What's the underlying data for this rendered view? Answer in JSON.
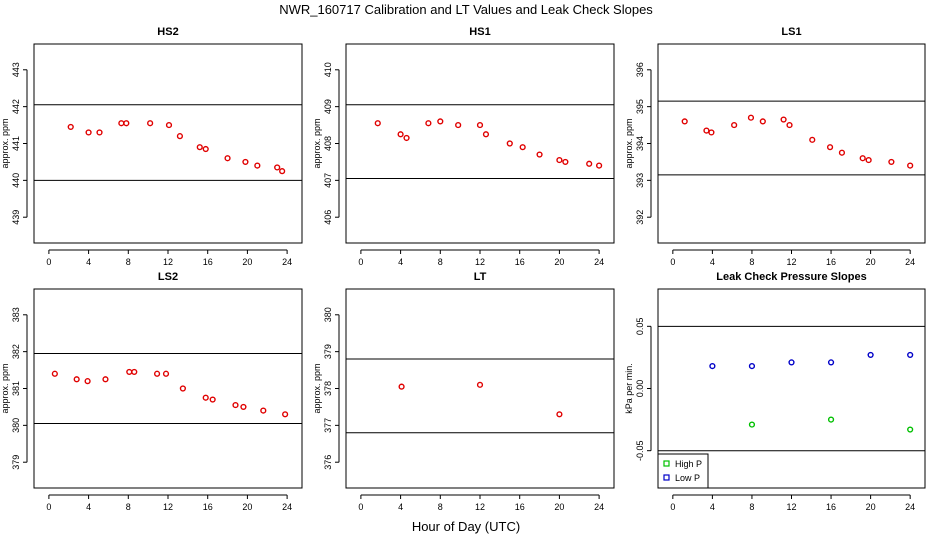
{
  "figure": {
    "title": "NWR_160717  Calibration and LT Values and Leak Check Slopes",
    "xlabel": "Hour of Day (UTC)"
  },
  "chart_data": [
    {
      "type": "scatter",
      "title": "HS2",
      "ylabel": "approx. ppm",
      "xlim": [
        -1.5,
        25.5
      ],
      "ylim": [
        438.3,
        443.7
      ],
      "xticks": [
        0,
        4,
        8,
        12,
        16,
        20,
        24
      ],
      "yticks": [
        439,
        440,
        441,
        442,
        443
      ],
      "hlines": [
        442.05,
        440.0
      ],
      "grid": false,
      "series": [
        {
          "color": "#e00000",
          "marker": "circle",
          "x": [
            2.2,
            4.0,
            5.1,
            7.3,
            7.8,
            10.2,
            12.1,
            13.2,
            15.2,
            15.8,
            18.0,
            19.8,
            21.0,
            23.0,
            23.5
          ],
          "y": [
            441.45,
            441.3,
            441.3,
            441.55,
            441.55,
            441.55,
            441.5,
            441.2,
            440.9,
            440.85,
            440.6,
            440.5,
            440.4,
            440.35,
            440.25
          ]
        }
      ]
    },
    {
      "type": "scatter",
      "title": "HS1",
      "ylabel": "approx. ppm",
      "xlim": [
        -1.5,
        25.5
      ],
      "ylim": [
        405.3,
        410.7
      ],
      "xticks": [
        0,
        4,
        8,
        12,
        16,
        20,
        24
      ],
      "yticks": [
        406,
        407,
        408,
        409,
        410
      ],
      "hlines": [
        409.05,
        407.05
      ],
      "grid": false,
      "series": [
        {
          "color": "#e00000",
          "marker": "circle",
          "x": [
            1.7,
            4.0,
            4.6,
            6.8,
            8.0,
            9.8,
            12.0,
            12.6,
            15.0,
            16.3,
            18.0,
            20.0,
            20.6,
            23.0,
            24.0
          ],
          "y": [
            408.55,
            408.25,
            408.15,
            408.55,
            408.6,
            408.5,
            408.5,
            408.25,
            408.0,
            407.9,
            407.7,
            407.55,
            407.5,
            407.45,
            407.4
          ]
        }
      ]
    },
    {
      "type": "scatter",
      "title": "LS1",
      "ylabel": "approx. ppm",
      "xlim": [
        -1.5,
        25.5
      ],
      "ylim": [
        391.3,
        396.7
      ],
      "xticks": [
        0,
        4,
        8,
        12,
        16,
        20,
        24
      ],
      "yticks": [
        392,
        393,
        394,
        395,
        396
      ],
      "hlines": [
        395.15,
        393.15
      ],
      "grid": false,
      "series": [
        {
          "color": "#e00000",
          "marker": "circle",
          "x": [
            1.2,
            3.4,
            3.9,
            6.2,
            7.9,
            9.1,
            11.2,
            11.8,
            14.1,
            15.9,
            17.1,
            19.2,
            19.8,
            22.1,
            24.0
          ],
          "y": [
            394.6,
            394.35,
            394.3,
            394.5,
            394.7,
            394.6,
            394.65,
            394.5,
            394.1,
            393.9,
            393.75,
            393.6,
            393.55,
            393.5,
            393.4
          ]
        }
      ]
    },
    {
      "type": "scatter",
      "title": "LS2",
      "ylabel": "approx. ppm",
      "xlim": [
        -1.5,
        25.5
      ],
      "ylim": [
        378.3,
        383.7
      ],
      "xticks": [
        0,
        4,
        8,
        12,
        16,
        20,
        24
      ],
      "yticks": [
        379,
        380,
        381,
        382,
        383
      ],
      "hlines": [
        381.95,
        380.05
      ],
      "grid": false,
      "series": [
        {
          "color": "#e00000",
          "marker": "circle",
          "x": [
            0.6,
            2.8,
            3.9,
            5.7,
            8.1,
            8.6,
            10.9,
            11.8,
            13.5,
            15.8,
            16.5,
            18.8,
            19.6,
            21.6,
            23.8
          ],
          "y": [
            381.4,
            381.25,
            381.2,
            381.25,
            381.45,
            381.45,
            381.4,
            381.4,
            381.0,
            380.75,
            380.7,
            380.55,
            380.5,
            380.4,
            380.3
          ]
        }
      ]
    },
    {
      "type": "scatter",
      "title": "LT",
      "ylabel": "approx. ppm",
      "xlim": [
        -1.5,
        25.5
      ],
      "ylim": [
        375.3,
        380.7
      ],
      "xticks": [
        0,
        4,
        8,
        12,
        16,
        20,
        24
      ],
      "yticks": [
        376,
        377,
        378,
        379,
        380
      ],
      "hlines": [
        378.8,
        376.8
      ],
      "grid": false,
      "series": [
        {
          "color": "#e00000",
          "marker": "circle",
          "x": [
            4.1,
            12.0,
            20.0
          ],
          "y": [
            378.05,
            378.1,
            377.3
          ]
        }
      ]
    },
    {
      "type": "scatter",
      "title": "Leak Check Pressure Slopes",
      "ylabel": "kPa per min.",
      "xlim": [
        -1.5,
        25.5
      ],
      "ylim": [
        -0.08,
        0.08
      ],
      "xticks": [
        0,
        4,
        8,
        12,
        16,
        20,
        24
      ],
      "yticks": [
        -0.05,
        0.0,
        0.05
      ],
      "ytick_labels": [
        "-0.05",
        "0.00",
        "0.05"
      ],
      "hlines": [
        0.05,
        -0.05
      ],
      "grid": false,
      "legend_position": "bottom-left",
      "series": [
        {
          "name": "High P",
          "color": "#00c000",
          "marker": "circle",
          "x": [
            8,
            16,
            24
          ],
          "y": [
            -0.029,
            -0.025,
            -0.033
          ]
        },
        {
          "name": "Low P",
          "color": "#0000c8",
          "marker": "circle",
          "x": [
            4,
            8,
            12,
            16,
            20,
            24
          ],
          "y": [
            0.018,
            0.018,
            0.021,
            0.021,
            0.027,
            0.027
          ]
        }
      ]
    }
  ]
}
